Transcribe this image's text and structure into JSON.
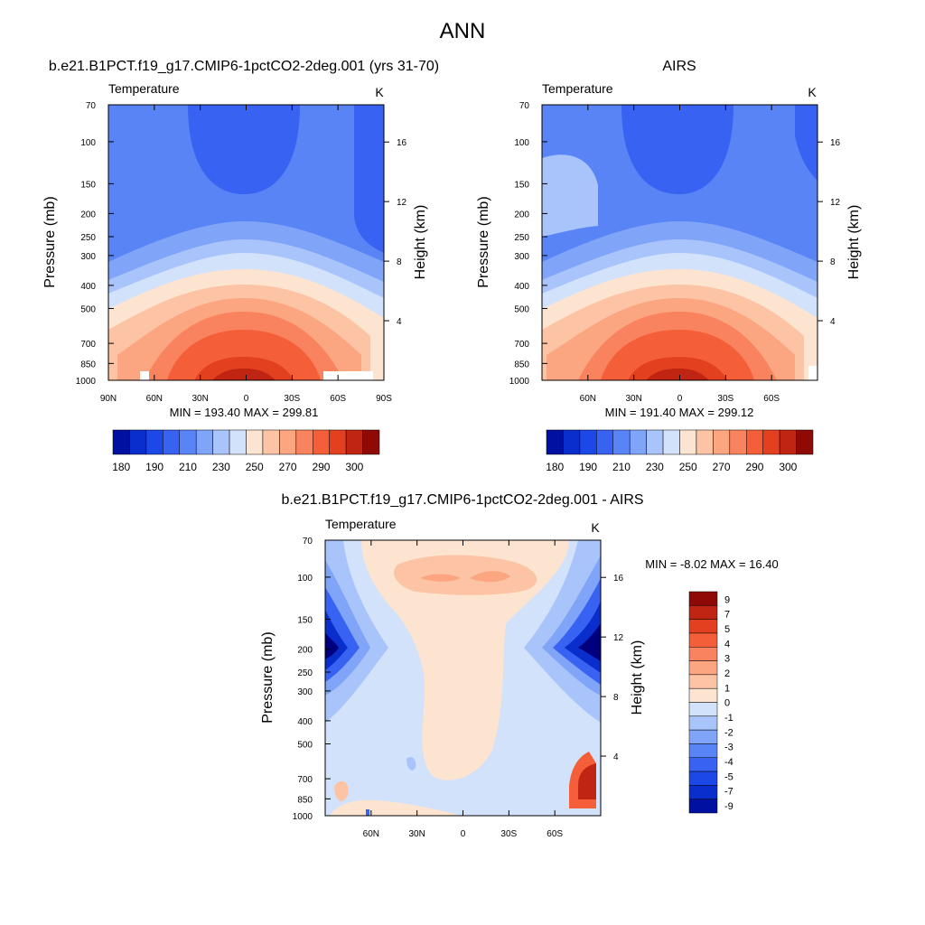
{
  "figure": {
    "title": "ANN"
  },
  "colors": {
    "abs": [
      "#00007f",
      "#0011a2",
      "#0a2ecb",
      "#1b48e6",
      "#3762f2",
      "#5984f5",
      "#80a5f8",
      "#a8c4fa",
      "#d2e2fb",
      "#fde4d1",
      "#fcc4a4",
      "#fba581",
      "#f9835e",
      "#f45f3a",
      "#e2401e",
      "#bf2512",
      "#8f0a06"
    ],
    "diff": [
      "#00007f",
      "#0011a2",
      "#0a2ecb",
      "#1b48e6",
      "#3762f2",
      "#5984f5",
      "#80a5f8",
      "#a8c4fa",
      "#d2e2fb",
      "#fde4d1",
      "#fcc4a4",
      "#fba581",
      "#f9835e",
      "#f45f3a",
      "#e2401e",
      "#bf2512",
      "#8f0a06"
    ]
  },
  "chart_data": [
    {
      "id": "model",
      "type": "heatmap",
      "title": "b.e21.B1PCT.f19_g17.CMIP6-1pctCO2-2deg.001 (yrs 31-70)",
      "left_label": "Temperature",
      "right_label": "K",
      "ylabel": "Pressure (mb)",
      "y2label": "Height (km)",
      "yticks": [
        "70",
        "100",
        "150",
        "200",
        "250",
        "300",
        "400",
        "500",
        "700",
        "850",
        "1000"
      ],
      "y2ticks": [
        "16",
        "12",
        "8",
        "4"
      ],
      "xticks": [
        "90N",
        "60N",
        "30N",
        "0",
        "30S",
        "60S",
        "90S"
      ],
      "stats": "MIN = 193.40  MAX = 299.81",
      "x": [
        90,
        0,
        -90
      ],
      "y": [
        70,
        1000
      ],
      "min": 193.4,
      "max": 299.81,
      "colorbar": {
        "labels": [
          "180",
          "190",
          "210",
          "230",
          "250",
          "270",
          "290",
          "300"
        ]
      }
    },
    {
      "id": "obs",
      "type": "heatmap",
      "title": "AIRS",
      "left_label": "Temperature",
      "right_label": "K",
      "ylabel": "Pressure (mb)",
      "y2label": "Height (km)",
      "yticks": [
        "70",
        "100",
        "150",
        "200",
        "250",
        "300",
        "400",
        "500",
        "700",
        "850",
        "1000"
      ],
      "y2ticks": [
        "16",
        "12",
        "8",
        "4"
      ],
      "xticks": [
        "60N",
        "30N",
        "0",
        "30S",
        "60S"
      ],
      "stats": "MIN = 191.40  MAX = 299.12",
      "min": 191.4,
      "max": 299.12,
      "colorbar": {
        "labels": [
          "180",
          "190",
          "210",
          "230",
          "250",
          "270",
          "290",
          "300"
        ]
      }
    },
    {
      "id": "diff",
      "type": "heatmap",
      "title": "b.e21.B1PCT.f19_g17.CMIP6-1pctCO2-2deg.001 - AIRS",
      "left_label": "Temperature",
      "right_label": "K",
      "ylabel": "Pressure (mb)",
      "y2label": "Height (km)",
      "yticks": [
        "70",
        "100",
        "150",
        "200",
        "250",
        "300",
        "400",
        "500",
        "700",
        "850",
        "1000"
      ],
      "y2ticks": [
        "16",
        "12",
        "8",
        "4"
      ],
      "xticks": [
        "60N",
        "30N",
        "0",
        "30S",
        "60S"
      ],
      "stats": "MIN =  -8.02  MAX =  16.40",
      "min": -8.02,
      "max": 16.4,
      "colorbar": {
        "labels": [
          "9",
          "7",
          "5",
          "4",
          "3",
          "2",
          "1",
          "0",
          "-1",
          "-2",
          "-3",
          "-4",
          "-5",
          "-7",
          "-9"
        ]
      }
    }
  ]
}
